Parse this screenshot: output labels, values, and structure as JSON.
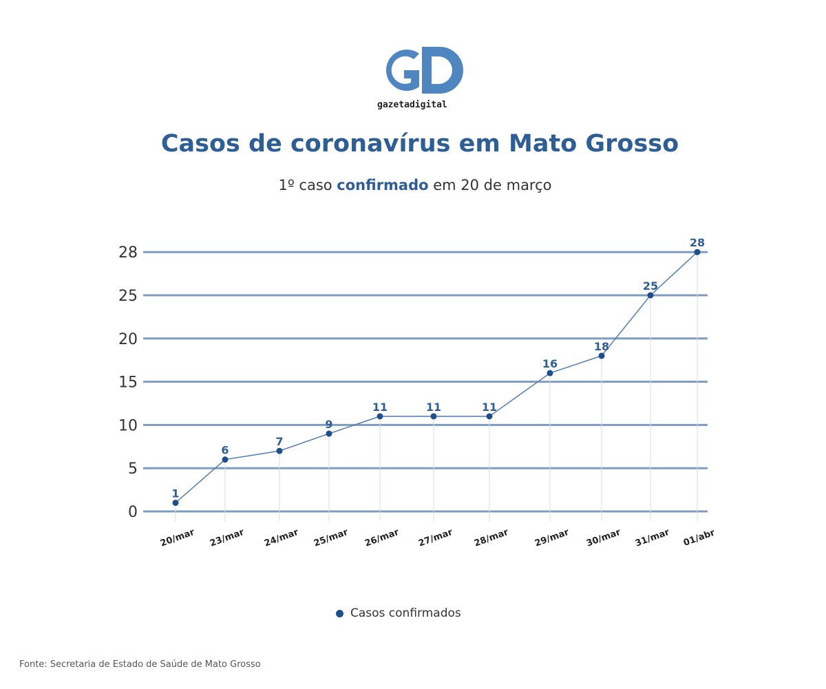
{
  "logo": {
    "text": "gazetadigital",
    "letters": "GD"
  },
  "title": "Casos de coronavírus em Mato Grosso",
  "subtitle": {
    "pre": "1º caso ",
    "highlight": "confirmado",
    "post": " em 20 de março"
  },
  "chart_data": {
    "type": "line",
    "title": "Casos de coronavírus em Mato Grosso",
    "categories": [
      "20/mar",
      "23/mar",
      "24/mar",
      "25/mar",
      "26/mar",
      "27/mar",
      "28/mar",
      "29/mar",
      "30/mar",
      "31/mar",
      "01/abr"
    ],
    "series": [
      {
        "name": "Casos confirmados",
        "values": [
          1,
          6,
          7,
          9,
          11,
          11,
          11,
          16,
          18,
          25,
          28
        ]
      }
    ],
    "yticks": [
      0,
      5,
      10,
      15,
      20,
      25,
      28
    ],
    "ylim": [
      0,
      28
    ],
    "xlabel": "",
    "ylabel": "",
    "grid": true,
    "legend": "bottom-center",
    "colors": {
      "line": "#5b82b3",
      "point": "#1f4e8c",
      "grid": "#7f9cc0",
      "label": "#2e5e93"
    }
  },
  "legend": {
    "label": "Casos confirmados"
  },
  "source": "Fonte: Secretaria de Estado de Saúde de Mato Grosso"
}
